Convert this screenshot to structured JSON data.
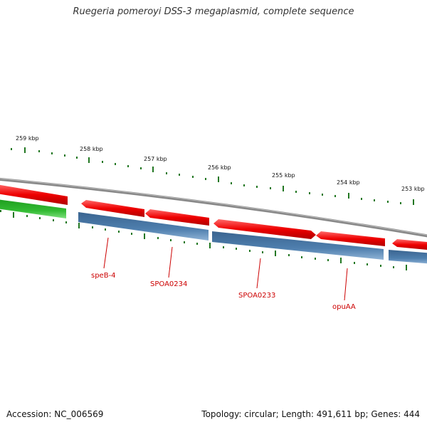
{
  "title": "Ruegeria pomeroyi DSS-3 megaplasmid, complete sequence",
  "footer": {
    "accession": "Accession: NC_006569",
    "summary": "Topology: circular; Length: 491,611 bp; Genes: 444"
  },
  "scale_labels": [
    "259 kbp",
    "258 kbp",
    "257 kbp",
    "256 kbp",
    "255 kbp",
    "254 kbp",
    "253 kbp"
  ],
  "genes": [
    {
      "label": "speB-4",
      "color": "#cc0000"
    },
    {
      "label": "SPOA0234",
      "color": "#cc0000"
    },
    {
      "label": "SPOA0233",
      "color": "#cc0000"
    },
    {
      "label": "opuAA",
      "color": "#cc0000"
    }
  ],
  "colors": {
    "backbone": "#888888",
    "forward_cds": "#ee0000",
    "reverse_cds": "#4f7fae",
    "other_feature": "#33bb33",
    "ticks": "#227722",
    "labels": "#cc0000"
  }
}
